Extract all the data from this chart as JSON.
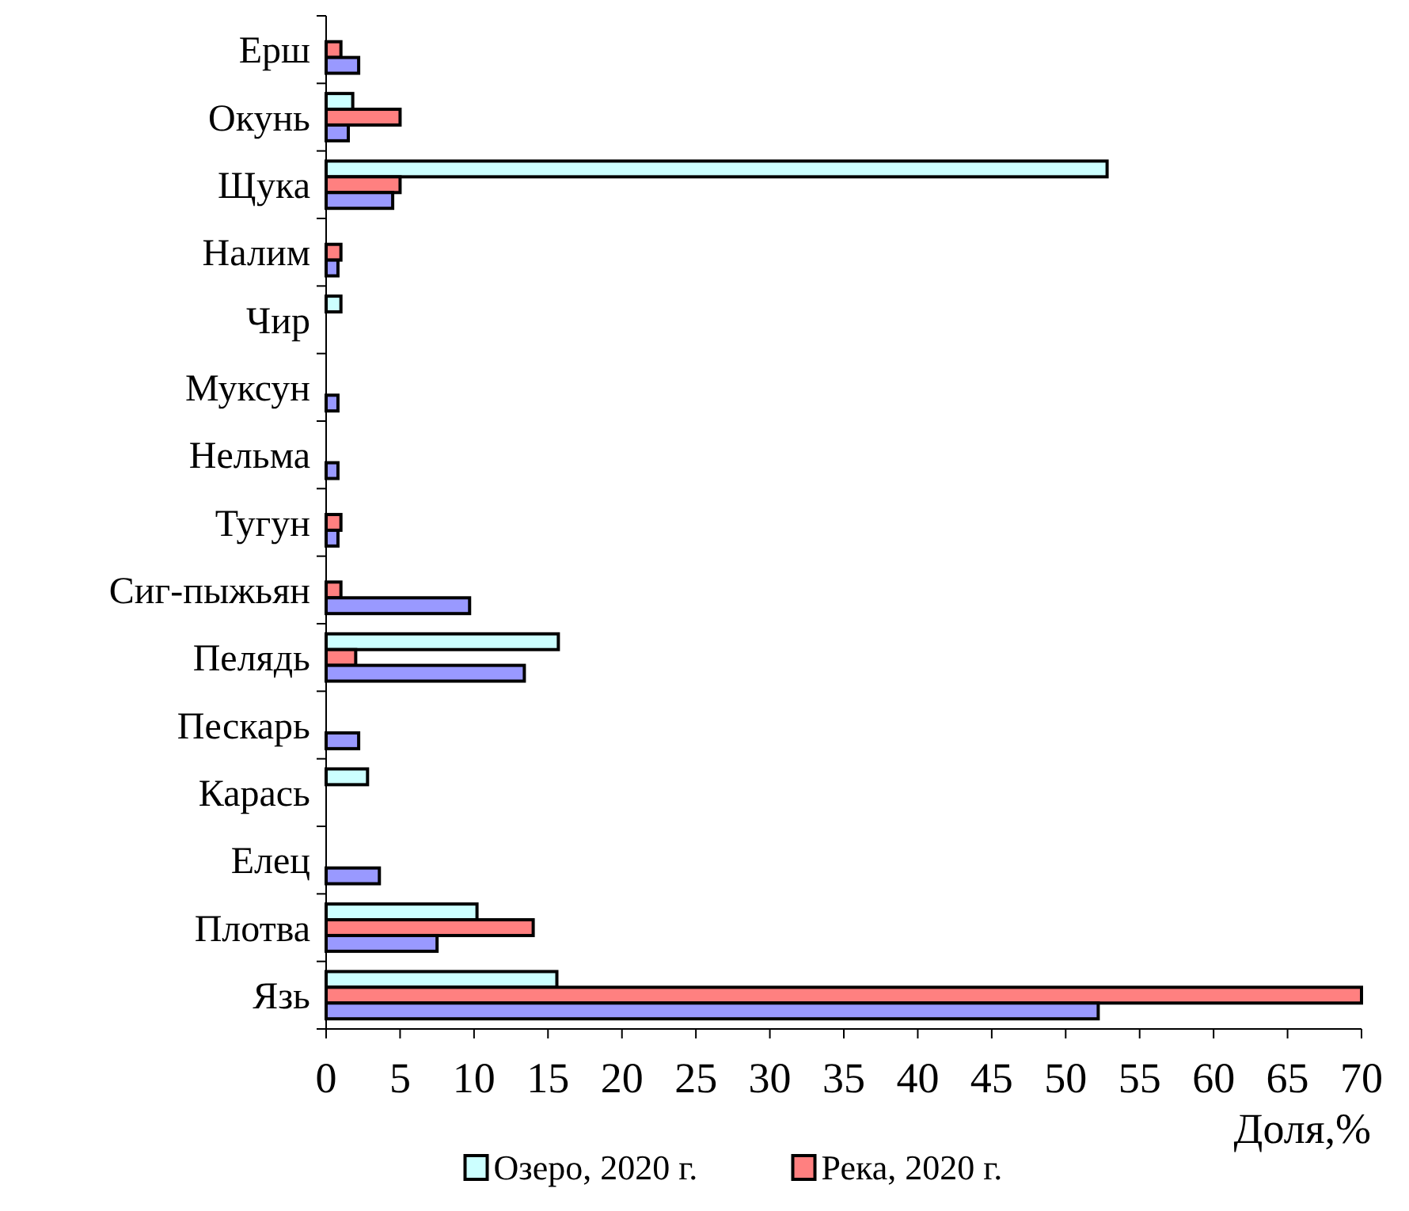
{
  "chart_data": {
    "type": "bar",
    "orientation": "horizontal",
    "xlabel": "Доля,%",
    "categories": [
      "Ерш",
      "Окунь",
      "Щука",
      "Налим",
      "Чир",
      "Муксун",
      "Нельма",
      "Тугун",
      "Сиг-пыжьян",
      "Пелядь",
      "Пескарь",
      "Карась",
      "Елец",
      "Плотва",
      "Язь"
    ],
    "series": [
      {
        "name": "Озеро, 2020 г.",
        "color": "#ccffff",
        "values": [
          null,
          1.8,
          52.8,
          null,
          1.0,
          null,
          null,
          null,
          null,
          15.7,
          null,
          2.8,
          null,
          10.2,
          15.6
        ]
      },
      {
        "name": "Река, 2020 г.",
        "color": "#ff8080",
        "values": [
          1.0,
          5.0,
          5.0,
          1.0,
          null,
          null,
          null,
          1.0,
          1.0,
          2.0,
          null,
          null,
          null,
          14.0,
          70
        ]
      },
      {
        "color": "#9999ff",
        "values": [
          2.2,
          1.5,
          4.5,
          0.8,
          null,
          0.8,
          0.8,
          0.8,
          9.7,
          13.4,
          2.2,
          null,
          3.6,
          7.5,
          52.2
        ]
      }
    ],
    "xlim": [
      0,
      70
    ],
    "xticks": [
      0,
      5,
      10,
      15,
      20,
      25,
      30,
      35,
      40,
      45,
      50,
      55,
      60,
      65,
      70
    ],
    "grid": false,
    "legend": "bottom"
  }
}
